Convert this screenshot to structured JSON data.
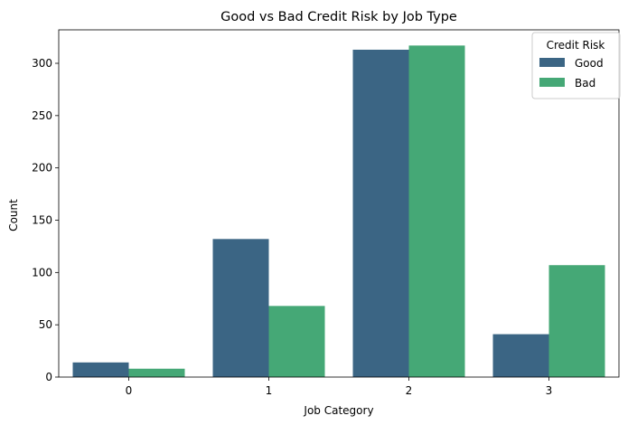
{
  "chart_data": {
    "type": "bar",
    "title": "Good vs Bad Credit Risk by Job Type",
    "xlabel": "Job Category",
    "ylabel": "Count",
    "categories": [
      "0",
      "1",
      "2",
      "3"
    ],
    "series": [
      {
        "name": "Good",
        "color": "#3b6584",
        "values": [
          14,
          132,
          313,
          41
        ]
      },
      {
        "name": "Bad",
        "color": "#45a876",
        "values": [
          8,
          68,
          317,
          107
        ]
      }
    ],
    "ylim": [
      0,
      332
    ],
    "yticks": [
      0,
      50,
      100,
      150,
      200,
      250,
      300
    ],
    "grid": false,
    "legend": {
      "title": "Credit Risk",
      "placement": "top-right"
    }
  }
}
